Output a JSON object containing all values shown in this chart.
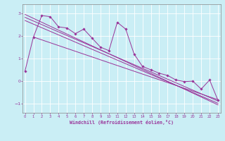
{
  "xlabel": "Windchill (Refroidissement éolien,°C)",
  "background_color": "#caeef5",
  "grid_color": "#ffffff",
  "line_color": "#993399",
  "x_ticks": [
    0,
    1,
    2,
    3,
    4,
    5,
    6,
    7,
    8,
    9,
    10,
    11,
    12,
    13,
    14,
    15,
    16,
    17,
    18,
    19,
    20,
    21,
    22,
    23
  ],
  "y_ticks": [
    -1,
    0,
    1,
    2,
    3
  ],
  "xlim": [
    -0.3,
    23.3
  ],
  "ylim": [
    -1.4,
    3.4
  ],
  "y_main": [
    0.45,
    1.95,
    2.9,
    2.85,
    2.4,
    2.35,
    2.1,
    2.3,
    1.9,
    1.5,
    1.35,
    2.6,
    2.3,
    1.2,
    0.65,
    0.5,
    0.35,
    0.25,
    0.05,
    -0.02,
    0.0,
    -0.35,
    0.05,
    -0.85
  ],
  "reg_lines": [
    [
      0,
      2.95,
      23,
      -1.05
    ],
    [
      0,
      2.82,
      23,
      -0.88
    ],
    [
      0,
      2.68,
      23,
      -0.98
    ],
    [
      1,
      1.95,
      23,
      -0.82
    ]
  ]
}
